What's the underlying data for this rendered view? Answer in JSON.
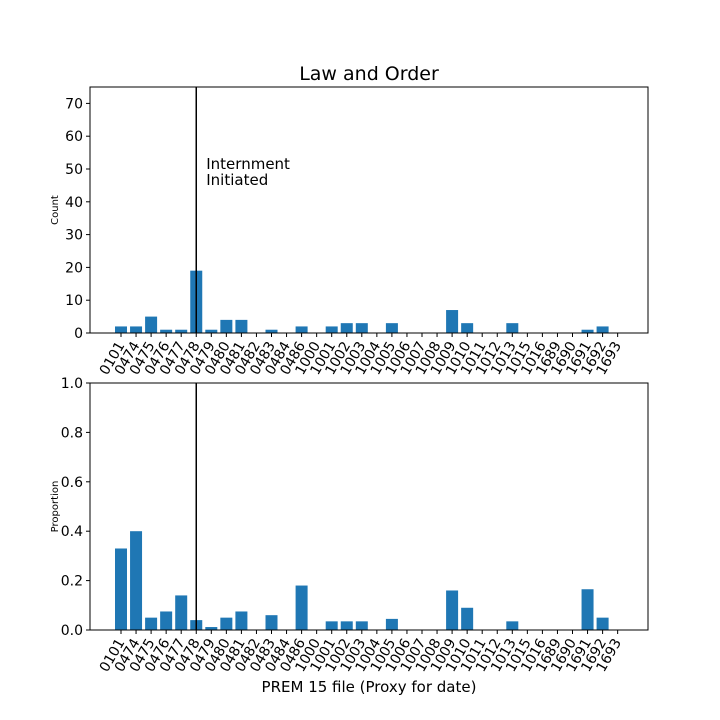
{
  "chart_data": {
    "type": "bar",
    "title": "Law and Order",
    "xlabel": "PREM 15 file (Proxy for date)",
    "categories": [
      "0101",
      "0474",
      "0475",
      "0476",
      "0477",
      "0478",
      "0479",
      "0480",
      "0481",
      "0482",
      "0483",
      "0484",
      "0486",
      "1000",
      "1001",
      "1002",
      "1003",
      "1004",
      "1005",
      "1006",
      "1007",
      "1008",
      "1009",
      "1010",
      "1011",
      "1012",
      "1013",
      "1015",
      "1016",
      "1689",
      "1690",
      "1691",
      "1692",
      "1693"
    ],
    "annotation": {
      "text_line1": "Internment",
      "text_line2": "Initiated",
      "at_category": "0478"
    },
    "panels": [
      {
        "ylabel": "Count",
        "ylim": [
          0,
          75
        ],
        "yticks": [
          0,
          10,
          20,
          30,
          40,
          50,
          60,
          70
        ],
        "values": [
          2,
          2,
          5,
          1,
          1,
          19,
          1,
          4,
          4,
          0,
          1,
          0,
          2,
          0,
          2,
          3,
          3,
          0,
          3,
          0,
          0,
          0,
          7,
          3,
          0,
          0,
          3,
          0,
          0,
          0,
          0,
          1,
          2,
          0
        ]
      },
      {
        "ylabel": "Proportion",
        "ylim": [
          0,
          1.0
        ],
        "yticks": [
          0.0,
          0.2,
          0.4,
          0.6,
          0.8,
          1.0
        ],
        "values": [
          0.33,
          0.4,
          0.05,
          0.075,
          0.14,
          0.04,
          0.012,
          0.05,
          0.075,
          0,
          0.06,
          0,
          0.18,
          0,
          0.035,
          0.035,
          0.035,
          0,
          0.045,
          0,
          0,
          0,
          0.16,
          0.09,
          0,
          0,
          0.035,
          0,
          0,
          0,
          0,
          0.165,
          0.05,
          0
        ]
      }
    ]
  }
}
